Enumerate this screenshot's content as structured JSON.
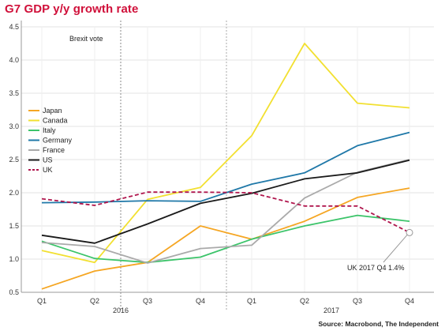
{
  "chart_data": {
    "type": "line",
    "title": "G7 GDP y/y growth rate",
    "source": "Source: Macrobond, The Independent",
    "categories": [
      "Q1",
      "Q2",
      "Q3",
      "Q4",
      "Q1",
      "Q2",
      "Q3",
      "Q4"
    ],
    "year_labels": [
      "2016",
      "2017"
    ],
    "ylim": [
      0.5,
      4.5
    ],
    "yticks": [
      "0.5",
      "1.0",
      "1.5",
      "2.0",
      "2.5",
      "3.0",
      "3.5",
      "4.0",
      "4.5"
    ],
    "ytick_values": [
      0.5,
      1.0,
      1.5,
      2.0,
      2.5,
      3.0,
      3.5,
      4.0,
      4.5
    ],
    "grid": true,
    "legend_position": "left",
    "series": [
      {
        "name": "Japan",
        "color": "#f5a623",
        "dashed": false,
        "values": [
          0.55,
          0.82,
          0.95,
          1.5,
          1.3,
          1.57,
          1.93,
          2.07
        ]
      },
      {
        "name": "Canada",
        "color": "#f2e030",
        "dashed": false,
        "values": [
          1.13,
          0.95,
          1.9,
          2.08,
          2.86,
          4.25,
          3.35,
          3.28
        ]
      },
      {
        "name": "Italy",
        "color": "#3cc46a",
        "dashed": false,
        "values": [
          1.27,
          1.01,
          0.95,
          1.03,
          1.3,
          1.5,
          1.66,
          1.57
        ]
      },
      {
        "name": "Germany",
        "color": "#1f78a8",
        "dashed": false,
        "values": [
          1.85,
          1.86,
          1.88,
          1.87,
          2.13,
          2.3,
          2.71,
          2.91
        ]
      },
      {
        "name": "France",
        "color": "#aaaaaa",
        "dashed": false,
        "values": [
          1.25,
          1.19,
          0.94,
          1.16,
          1.21,
          1.92,
          2.31,
          2.5
        ]
      },
      {
        "name": "US",
        "color": "#1a1a1a",
        "dashed": false,
        "values": [
          1.36,
          1.24,
          1.53,
          1.84,
          1.99,
          2.21,
          2.3,
          2.49
        ]
      },
      {
        "name": "UK",
        "color": "#b0174e",
        "dashed": true,
        "values": [
          1.91,
          1.81,
          2.01,
          2.01,
          2.0,
          1.8,
          1.8,
          1.4
        ]
      }
    ],
    "annotations": {
      "brexit_label": "Brexit vote",
      "uk_callout": "UK 2017 Q4 1.4%"
    }
  }
}
